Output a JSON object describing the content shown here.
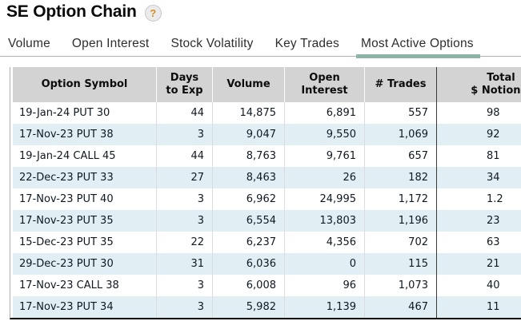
{
  "header": {
    "title": "SE Option Chain",
    "help_label": "?"
  },
  "tabs": [
    {
      "label": "Volume",
      "active": false
    },
    {
      "label": "Open Interest",
      "active": false
    },
    {
      "label": "Stock Volatility",
      "active": false
    },
    {
      "label": "Key Trades",
      "active": false
    },
    {
      "label": "Most Active Options",
      "active": true
    }
  ],
  "table": {
    "columns": [
      "Option Symbol",
      "Days\nto Exp",
      "Volume",
      "Open\nInterest",
      "# Trades",
      "Total\n$ Notional"
    ],
    "rows": [
      {
        "symbol": "19-Jan-24 PUT 30",
        "days": "44",
        "volume": "14,875",
        "open_interest": "6,891",
        "trades": "557",
        "notional": "98"
      },
      {
        "symbol": "17-Nov-23 PUT 38",
        "days": "3",
        "volume": "9,047",
        "open_interest": "9,550",
        "trades": "1,069",
        "notional": "92"
      },
      {
        "symbol": "19-Jan-24 CALL 45",
        "days": "44",
        "volume": "8,763",
        "open_interest": "9,761",
        "trades": "657",
        "notional": "81"
      },
      {
        "symbol": "22-Dec-23 PUT 33",
        "days": "27",
        "volume": "8,463",
        "open_interest": "26",
        "trades": "182",
        "notional": "34"
      },
      {
        "symbol": "17-Nov-23 PUT 40",
        "days": "3",
        "volume": "6,962",
        "open_interest": "24,995",
        "trades": "1,172",
        "notional": "1.2"
      },
      {
        "symbol": "17-Nov-23 PUT 35",
        "days": "3",
        "volume": "6,554",
        "open_interest": "13,803",
        "trades": "1,196",
        "notional": "23"
      },
      {
        "symbol": "15-Dec-23 PUT 35",
        "days": "22",
        "volume": "6,237",
        "open_interest": "4,356",
        "trades": "702",
        "notional": "63"
      },
      {
        "symbol": "29-Dec-23 PUT 30",
        "days": "31",
        "volume": "6,036",
        "open_interest": "0",
        "trades": "115",
        "notional": "21"
      },
      {
        "symbol": "17-Nov-23 CALL 38",
        "days": "3",
        "volume": "6,008",
        "open_interest": "96",
        "trades": "1,073",
        "notional": "40"
      },
      {
        "symbol": "17-Nov-23 PUT 34",
        "days": "3",
        "volume": "5,982",
        "open_interest": "1,139",
        "trades": "467",
        "notional": "11"
      }
    ],
    "note": "last column clipped at right edge of viewport"
  },
  "colors": {
    "active_tab_underline": "#8db5a6",
    "header_background": "#d3d3d3",
    "row_stripe": "#e1eff4",
    "help_icon_question": "#d08f2b",
    "table_bottom_border": "#000000",
    "column_divider_dark": "#3a3a3a"
  }
}
